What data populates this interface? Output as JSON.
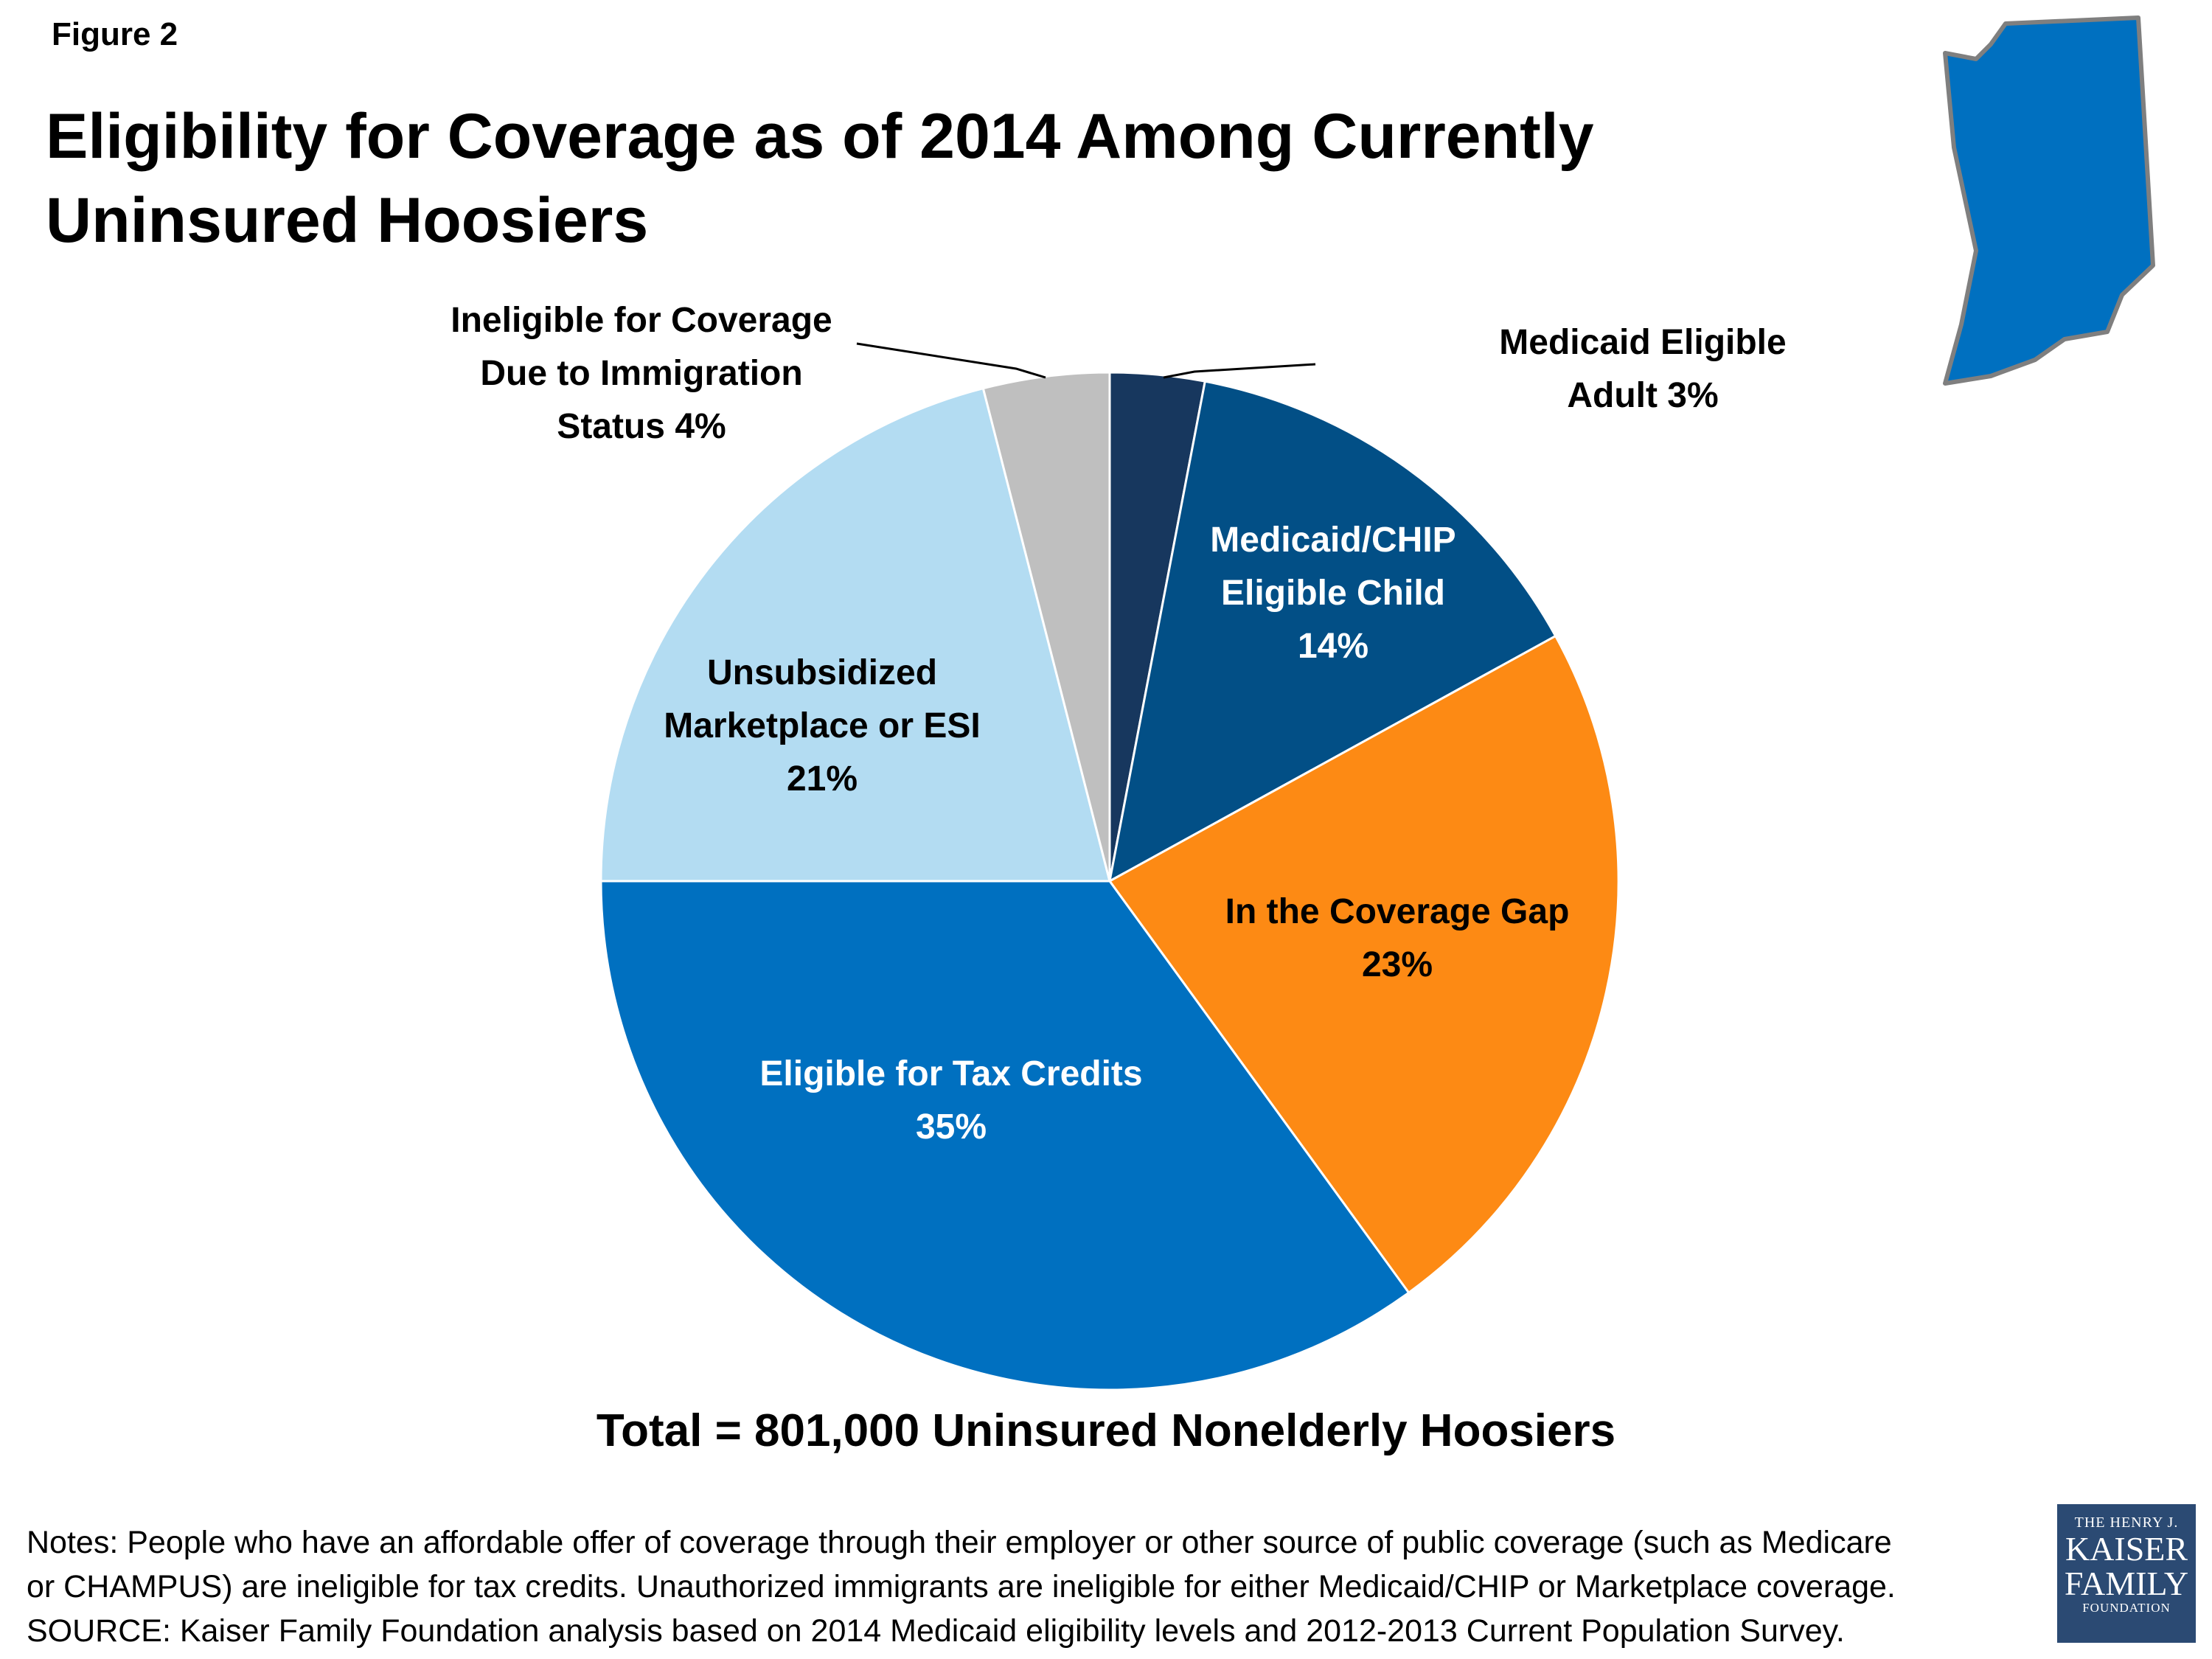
{
  "figure_label": "Figure 2",
  "title": "Eligibility for Coverage as of 2014 Among Currently Uninsured Hoosiers",
  "total": "Total = 801,000 Uninsured Nonelderly Hoosiers",
  "notes": [
    "Notes: People who have an affordable offer of coverage through their employer or other source of public coverage (such as Medicare",
    "or CHAMPUS) are ineligible for tax credits. Unauthorized immigrants are ineligible for either Medicaid/CHIP or Marketplace coverage.",
    "SOURCE: Kaiser Family Foundation analysis based on 2014 Medicaid eligibility levels and 2012-2013 Current Population Survey."
  ],
  "logo": {
    "line1": "THE HENRY J.",
    "line2": "KAISER",
    "line3": "FAMILY",
    "line4": "FOUNDATION",
    "color": "#2b4a73"
  },
  "state_map": {
    "icon": "indiana-state-icon",
    "color": "#0070c0"
  },
  "chart_data": {
    "type": "pie",
    "slices": [
      {
        "name": "Medicaid Eligible Adult",
        "value": 3,
        "label_lines": [
          "Medicaid Eligible",
          "Adult  3%"
        ],
        "color": "#17375e",
        "label_color": "#000000"
      },
      {
        "name": "Medicaid/CHIP Eligible Child",
        "value": 14,
        "label_lines": [
          "Medicaid/CHIP",
          "Eligible Child",
          "14%"
        ],
        "color": "#024f86",
        "label_color": "#ffffff"
      },
      {
        "name": "In the Coverage Gap",
        "value": 23,
        "label_lines": [
          "In the Coverage Gap",
          "23%"
        ],
        "color": "#fd8a14",
        "label_color": "#000000"
      },
      {
        "name": "Eligible for Tax Credits",
        "value": 35,
        "label_lines": [
          "Eligible for Tax Credits",
          "35%"
        ],
        "color": "#0070c0",
        "label_color": "#ffffff"
      },
      {
        "name": "Unsubsidized Marketplace or ESI",
        "value": 21,
        "label_lines": [
          "Unsubsidized",
          "Marketplace or ESI",
          "21%"
        ],
        "color": "#b3dcf2",
        "label_color": "#000000"
      },
      {
        "name": "Ineligible for Coverage Due to Immigration Status",
        "value": 4,
        "label_lines": [
          "Ineligible for Coverage",
          "Due to Immigration",
          "Status 4%"
        ],
        "color": "#bfbfbf",
        "label_color": "#000000"
      }
    ]
  }
}
